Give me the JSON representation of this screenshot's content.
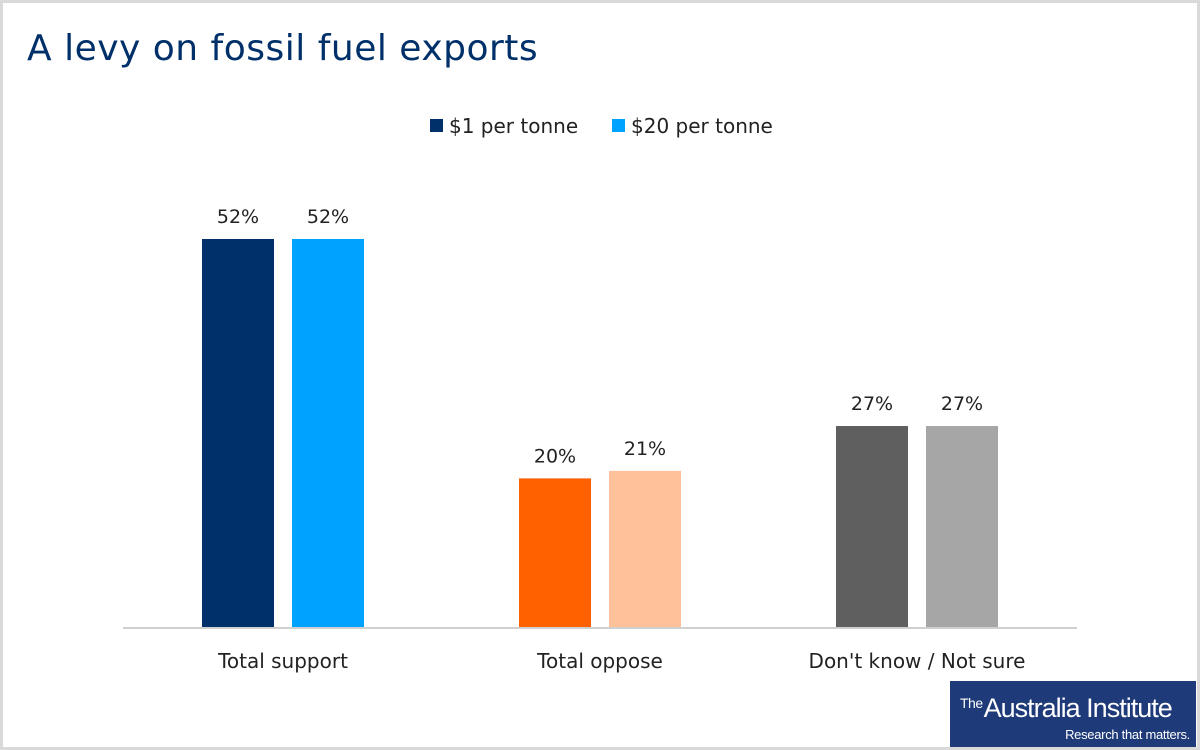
{
  "chart_data": {
    "type": "bar",
    "title": "A levy on fossil fuel exports",
    "categories": [
      "Total support",
      "Total oppose",
      "Don't know / Not sure"
    ],
    "series": [
      {
        "name": "$1 per tonne",
        "values": [
          52,
          20,
          27
        ],
        "colors": [
          "#003069",
          "#ff6000",
          "#5f5f5f"
        ]
      },
      {
        "name": "$20 per tonne",
        "values": [
          52,
          21,
          27
        ],
        "colors": [
          "#00a2ff",
          "#ffc19a",
          "#a6a6a6"
        ]
      }
    ],
    "data_labels": [
      [
        "52%",
        "20%",
        "27%"
      ],
      [
        "52%",
        "21%",
        "27%"
      ]
    ],
    "legend_position": "top",
    "legend_colors": [
      "#003069",
      "#00a2ff"
    ],
    "ylim": [
      0,
      55
    ],
    "grid": false,
    "xlabel": "",
    "ylabel": ""
  },
  "logo": {
    "name_prefix": "The",
    "name": "Australia Institute",
    "tagline": "Research that matters."
  }
}
